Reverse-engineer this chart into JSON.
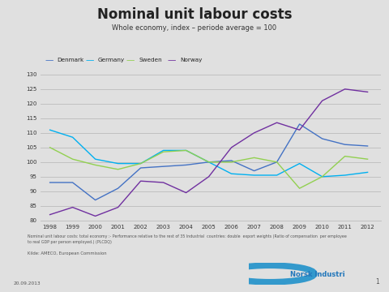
{
  "title": "Nominal unit labour costs",
  "subtitle": "Whole economy, index – periode average = 100",
  "years": [
    1998,
    1999,
    2000,
    2001,
    2002,
    2003,
    2004,
    2005,
    2006,
    2007,
    2008,
    2009,
    2010,
    2011,
    2012
  ],
  "denmark": [
    93,
    93,
    87,
    91,
    98,
    98.5,
    99,
    100,
    100.5,
    97,
    100,
    113,
    108,
    106,
    105.5
  ],
  "germany": [
    111,
    108.5,
    101,
    99.5,
    99.5,
    104,
    104,
    100,
    96,
    95.5,
    95.5,
    99.5,
    95,
    95.5,
    96.5
  ],
  "sweden": [
    105,
    101,
    99,
    97.5,
    99.5,
    103.5,
    104,
    100,
    100,
    101.5,
    100,
    91,
    95,
    102,
    101
  ],
  "norway": [
    82,
    84.5,
    81.5,
    84.5,
    93.5,
    93,
    89.5,
    95,
    105,
    110,
    113.5,
    111,
    121,
    125,
    124
  ],
  "denmark_color": "#4472C4",
  "germany_color": "#00B0F0",
  "sweden_color": "#92D050",
  "norway_color": "#7030A0",
  "ylim": [
    80,
    130
  ],
  "yticks": [
    80,
    85,
    90,
    95,
    100,
    105,
    110,
    115,
    120,
    125,
    130
  ],
  "bg_color": "#E0E0E0",
  "plot_bg_color": "#E0E0E0",
  "grid_color": "#BBBBBB",
  "footnote1": "Nominal unit labour costs: total economy :- Performance relative to the rest of 35 Industrial  countries: double  export weights (Ratio of compensation  per employee",
  "footnote2": "to real GDP per person employed.) (PLCDQ)",
  "source": "Kilde: AMECO, European Commission",
  "date": "20.09.2013",
  "page": "1"
}
